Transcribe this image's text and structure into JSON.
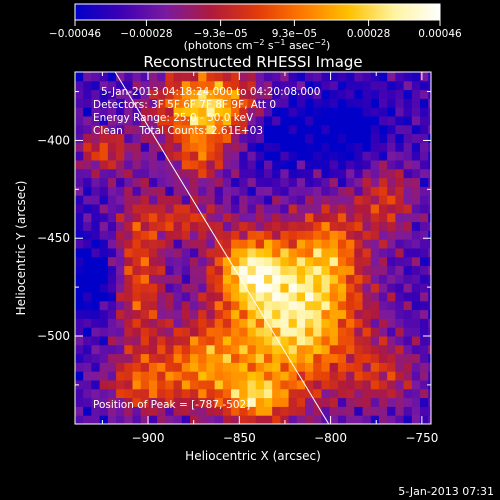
{
  "chart_data": {
    "type": "heatmap",
    "title": "Reconstructed RHESSI Image",
    "xlabel": "Heliocentric X (arcsec)",
    "ylabel": "Heliocentric Y (arcsec)",
    "xlim": [
      -940,
      -745
    ],
    "ylim": [
      -545,
      -365
    ],
    "x_ticks": [
      -900,
      -850,
      -800,
      -750
    ],
    "y_ticks": [
      -400,
      -450,
      -500
    ],
    "x_tick_labels": [
      "−900",
      "−850",
      "−800",
      "−750"
    ],
    "y_tick_labels": [
      "−400",
      "−450",
      "−500"
    ],
    "colorbar": {
      "ticks": [
        -0.00046,
        -0.00028,
        -9.3e-05,
        9.3e-05,
        0.00028,
        0.00046
      ],
      "tick_labels": [
        "−0.00046",
        "−0.00028",
        "−9.3e−05",
        "9.3e−05",
        "0.00028",
        "0.00046"
      ],
      "range": [
        -0.00046,
        0.00046
      ],
      "colormap": [
        "#0000c8",
        "#3c00b4",
        "#7a1aa0",
        "#b01a3c",
        "#e23a0a",
        "#ff7a00",
        "#ffc000",
        "#fff4a0",
        "#ffffff"
      ]
    },
    "annotations": [
      "5-Jan-2013 04:18:24.000 to 04:20:08.000",
      "Detectors: 3F 5F 6F 7F 8F 9F, Att 0",
      "Energy Range: 25.0 - 50.0 keV",
      "Clean     Total Counts: 2.61E+03",
      "Position of Peak = [-787,-502]"
    ],
    "limb_line": {
      "x": [
        -918,
        -801
      ],
      "y": [
        -365,
        -545
      ]
    },
    "peak": {
      "x": -787,
      "y": -502
    },
    "blobs": [
      {
        "x": -867,
        "y": -383,
        "sx": 20,
        "sy": 14,
        "a": 1.0
      },
      {
        "x": -872,
        "y": -410,
        "sx": 10,
        "sy": 9,
        "a": 0.45
      },
      {
        "x": -820,
        "y": -490,
        "sx": 26,
        "sy": 28,
        "a": 1.05
      },
      {
        "x": -845,
        "y": -465,
        "sx": 14,
        "sy": 12,
        "a": 0.7
      },
      {
        "x": -800,
        "y": -455,
        "sx": 12,
        "sy": 16,
        "a": 0.45
      },
      {
        "x": -870,
        "y": -515,
        "sx": 18,
        "sy": 16,
        "a": 0.65
      },
      {
        "x": -905,
        "y": -468,
        "sx": 10,
        "sy": 30,
        "a": 0.55
      },
      {
        "x": -880,
        "y": -440,
        "sx": 14,
        "sy": 8,
        "a": 0.45
      },
      {
        "x": -840,
        "y": -532,
        "sx": 12,
        "sy": 8,
        "a": 0.65
      },
      {
        "x": -925,
        "y": -405,
        "sx": 10,
        "sy": 8,
        "a": 0.5
      },
      {
        "x": -770,
        "y": -430,
        "sx": 12,
        "sy": 14,
        "a": 0.45
      },
      {
        "x": -905,
        "y": -525,
        "sx": 14,
        "sy": 10,
        "a": 0.45
      },
      {
        "x": -770,
        "y": -520,
        "sx": 14,
        "sy": 12,
        "a": 0.35
      },
      {
        "x": -830,
        "y": -395,
        "sx": 16,
        "sy": 12,
        "a": -0.35
      },
      {
        "x": -790,
        "y": -395,
        "sx": 14,
        "sy": 14,
        "a": -0.3
      },
      {
        "x": -930,
        "y": -470,
        "sx": 10,
        "sy": 12,
        "a": -0.4
      }
    ]
  },
  "footer": {
    "timestamp": "5-Jan-2013 07:31"
  }
}
